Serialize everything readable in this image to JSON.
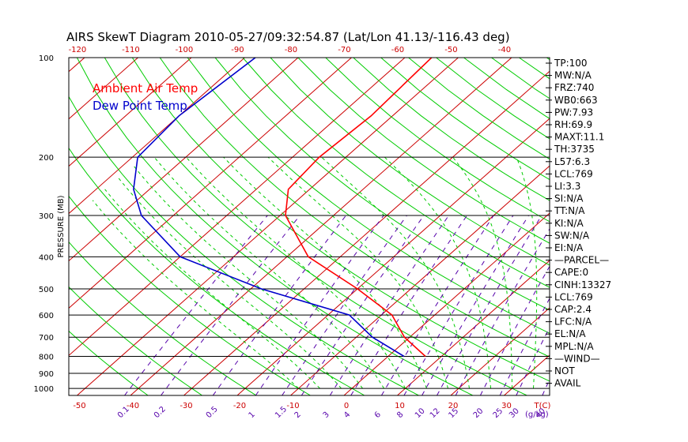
{
  "chart_data": {
    "type": "skewt",
    "title": "AIRS SkewT Diagram 2010-05-27/09:32:54.87 (Lat/Lon 41.13/-116.43 deg)",
    "ylabel": "PRESSURE (MB)",
    "xlabel_bottom": "T(C)",
    "mixing_ratio_label": "(g/kg)",
    "pressure_range": [
      100,
      1050
    ],
    "pressure_ticks": [
      100,
      200,
      300,
      400,
      500,
      600,
      700,
      800,
      900,
      1000
    ],
    "top_temp_ticks": [
      -120,
      -110,
      -100,
      -90,
      -80,
      -70,
      -60,
      -50,
      -40
    ],
    "bottom_temp_ticks": [
      -50,
      -40,
      -30,
      -20,
      -10,
      0,
      10,
      20,
      30
    ],
    "mixing_ratio_ticks": [
      "0.1",
      "0.2",
      "0.5",
      "1",
      "1.5",
      "2",
      "3",
      "4",
      "6",
      "8",
      "10",
      "12",
      "15",
      "20",
      "25",
      "30",
      "40"
    ],
    "legend": [
      {
        "label": "Ambient Air Temp",
        "color": "#ff0000"
      },
      {
        "label": "Dew Point Temp",
        "color": "#0000cc"
      }
    ],
    "series": [
      {
        "name": "Ambient Air Temp",
        "color": "#ff0000",
        "points": [
          {
            "p": 100,
            "t": -55
          },
          {
            "p": 150,
            "t": -54
          },
          {
            "p": 200,
            "t": -55
          },
          {
            "p": 250,
            "t": -54
          },
          {
            "p": 300,
            "t": -49
          },
          {
            "p": 400,
            "t": -36
          },
          {
            "p": 500,
            "t": -20
          },
          {
            "p": 600,
            "t": -8
          },
          {
            "p": 700,
            "t": -1
          },
          {
            "p": 800,
            "t": 7
          }
        ]
      },
      {
        "name": "Dew Point Temp",
        "color": "#0000cc",
        "points": [
          {
            "p": 100,
            "t": -88
          },
          {
            "p": 150,
            "t": -90
          },
          {
            "p": 200,
            "t": -89
          },
          {
            "p": 250,
            "t": -83
          },
          {
            "p": 300,
            "t": -76
          },
          {
            "p": 400,
            "t": -60
          },
          {
            "p": 500,
            "t": -38
          },
          {
            "p": 600,
            "t": -16
          },
          {
            "p": 700,
            "t": -7
          },
          {
            "p": 800,
            "t": 3
          }
        ]
      }
    ],
    "indices": [
      "TP:100",
      "MW:N/A",
      "FRZ:740",
      "WB0:663",
      "PW:7.93",
      "RH:69.9",
      "MAXT:11.1",
      "TH:3735",
      "L57:6.3",
      "LCL:769",
      "LI:3.3",
      "SI:N/A",
      "TT:N/A",
      "KI:N/A",
      "SW:N/A",
      "EI:N/A",
      "—PARCEL—",
      "CAPE:0",
      "CINH:13327",
      "LCL:769",
      "CAP:2.4",
      "LFC:N/A",
      "EL:N/A",
      "MPL:N/A",
      "—WIND—",
      "NOT",
      "AVAIL"
    ],
    "colors": {
      "isotherm": "#cc0000",
      "dry_adiabat": "#00cc00",
      "moist_adiabat": "#00cc00",
      "mixing_ratio": "#5500aa",
      "isobar": "#000000"
    }
  }
}
